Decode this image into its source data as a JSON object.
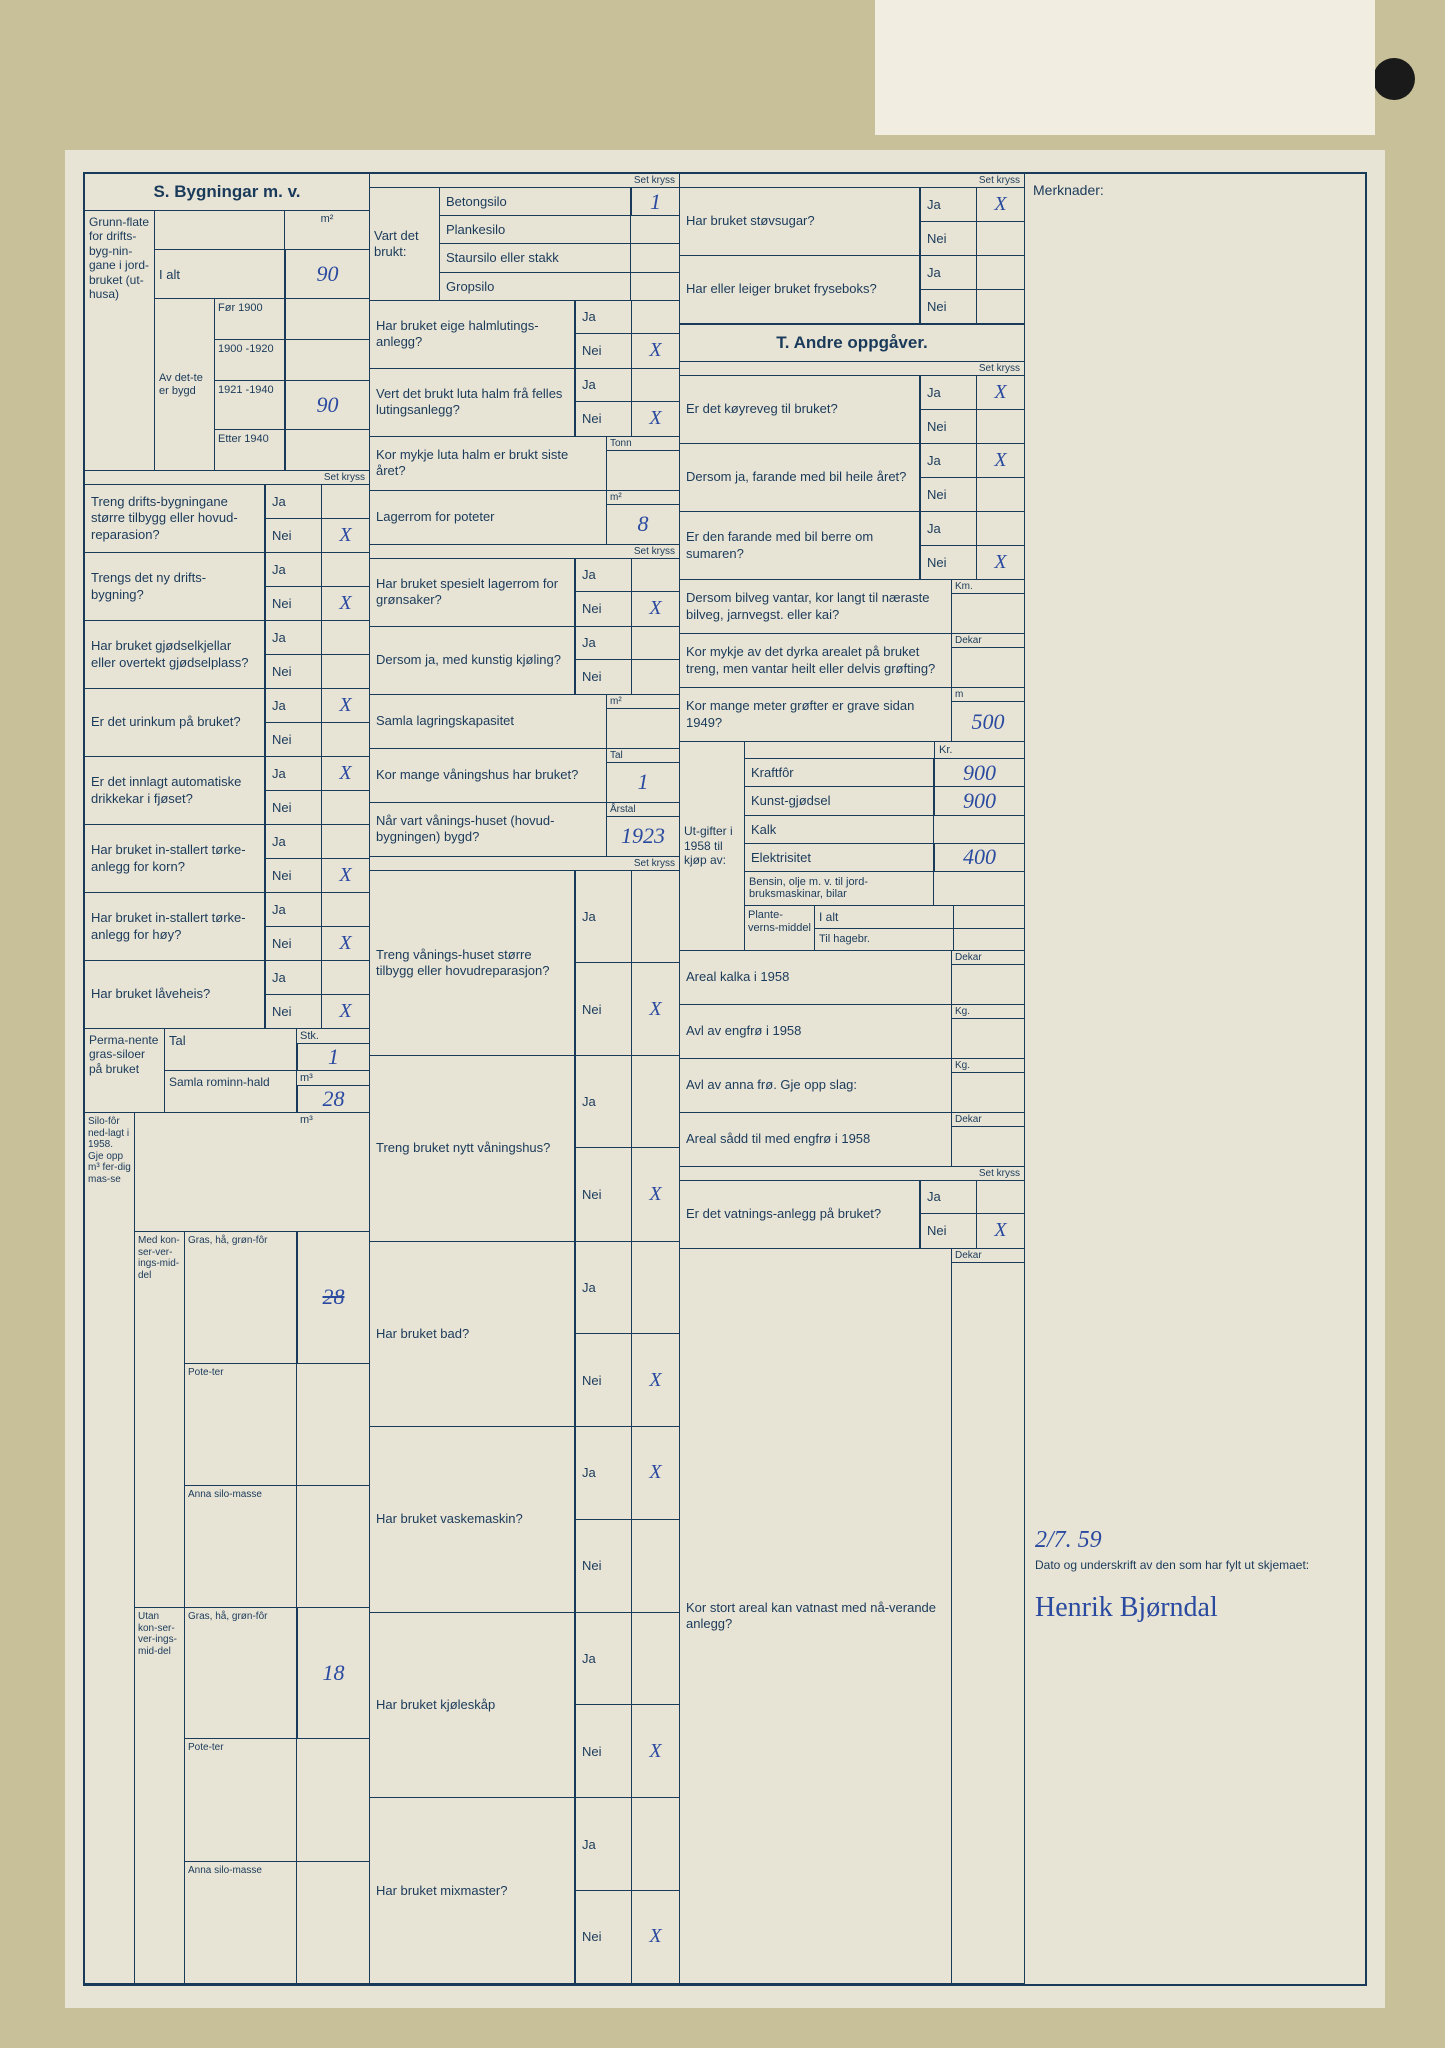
{
  "torn_paper": {
    "hole_count": 6
  },
  "section_s_title": "S. Bygningar m. v.",
  "section_t_title": "T. Andre oppgåver.",
  "merknader_label": "Merknader:",
  "set_kryss_label": "Set kryss",
  "ja": "Ja",
  "nei": "Nei",
  "col1": {
    "grunnflate": {
      "label": "Grunn-flate for drifts-byg-nin-gane i jord-bruket (ut-husa)",
      "unit": "m²",
      "i_alt_label": "I alt",
      "i_alt_val": "90",
      "av_dette_bygd": "Av det-te er bygd",
      "periods": [
        {
          "label": "Før 1900",
          "val": ""
        },
        {
          "label": "1900 -1920",
          "val": ""
        },
        {
          "label": "1921 -1940",
          "val": "90"
        },
        {
          "label": "Etter 1940",
          "val": ""
        }
      ]
    },
    "questions": [
      {
        "q": "Treng drifts-bygningane større tilbygg eller hovud-reparasion?",
        "ja": "",
        "nei": "X"
      },
      {
        "q": "Trengs det ny drifts-bygning?",
        "ja": "",
        "nei": "X"
      },
      {
        "q": "Har bruket gjødselkjellar eller overtekt gjødselplass?",
        "ja": "",
        "nei": ""
      },
      {
        "q": "Er det urinkum på bruket?",
        "ja": "X",
        "nei": ""
      },
      {
        "q": "Er det innlagt automatiske drikkekar i fjøset?",
        "ja": "X",
        "nei": ""
      },
      {
        "q": "Har bruket in-stallert tørke-anlegg for korn?",
        "ja": "",
        "nei": "X"
      },
      {
        "q": "Har bruket in-stallert tørke-anlegg for høy?",
        "ja": "",
        "nei": "X"
      },
      {
        "q": "Har bruket låveheis?",
        "ja": "",
        "nei": "X"
      }
    ],
    "siloer": {
      "label": "Perma-nente gras-siloer på bruket",
      "tal_label": "Tal",
      "tal_unit": "Stk.",
      "tal_val": "1",
      "rom_label": "Samla rominn-hald",
      "rom_unit": "m³",
      "rom_val": "28"
    },
    "silofor": {
      "label": "Silo-fôr ned-lagt i 1958. Gje opp m³ fer-dig mas-se",
      "med_label": "Med kon-ser-ver-ings-mid-del",
      "utan_label": "Utan kon-ser-ver-ings-mid-del",
      "unit": "m³",
      "items": [
        "Gras, hå, grøn-fôr",
        "Pote-ter",
        "Anna silo-masse"
      ],
      "med_vals": [
        "28",
        "",
        ""
      ],
      "med_strike": "28",
      "utan_vals": [
        "18",
        "",
        ""
      ]
    }
  },
  "col2": {
    "vart_brukt": {
      "label": "Vart det brukt:",
      "items": [
        {
          "label": "Betongsilo",
          "val": "1"
        },
        {
          "label": "Plankesilo",
          "val": ""
        },
        {
          "label": "Staursilo eller stakk",
          "val": ""
        },
        {
          "label": "Gropsilo",
          "val": ""
        }
      ]
    },
    "questions": [
      {
        "q": "Har bruket eige halmlutings-anlegg?",
        "ja": "",
        "nei": "X"
      },
      {
        "q": "Vert det brukt luta halm frå felles lutingsanlegg?",
        "ja": "",
        "nei": "X"
      }
    ],
    "luta_halm": {
      "q": "Kor mykje luta halm er brukt siste året?",
      "unit": "Tonn",
      "val": ""
    },
    "lagerrom": {
      "q": "Lagerrom for poteter",
      "unit": "m²",
      "val": "8"
    },
    "questions2": [
      {
        "q": "Har bruket spesielt lagerrom for grønsaker?",
        "ja": "",
        "nei": "X"
      },
      {
        "q": "Dersom ja, med kunstig kjøling?",
        "ja": "",
        "nei": ""
      }
    ],
    "lagring": {
      "q": "Samla lagringskapasitet",
      "unit": "m²",
      "val": ""
    },
    "vaningshus": {
      "q": "Kor mange våningshus har bruket?",
      "unit": "Tal",
      "val": "1"
    },
    "bygd_ar": {
      "q": "Når vart vånings-huset (hovud-bygningen) bygd?",
      "unit": "Årstal",
      "val": "1923"
    },
    "questions3": [
      {
        "q": "Treng vånings-huset større tilbygg eller hovudreparasjon?",
        "ja": "",
        "nei": "X"
      },
      {
        "q": "Treng bruket nytt våningshus?",
        "ja": "",
        "nei": "X"
      },
      {
        "q": "Har bruket bad?",
        "ja": "",
        "nei": "X"
      },
      {
        "q": "Har bruket vaskemaskin?",
        "ja": "X",
        "nei": ""
      },
      {
        "q": "Har bruket kjøleskåp",
        "ja": "",
        "nei": "X"
      },
      {
        "q": "Har bruket mixmaster?",
        "ja": "",
        "nei": "X"
      }
    ]
  },
  "col3": {
    "questions_top": [
      {
        "q": "Har bruket støvsugar?",
        "ja": "X",
        "nei": ""
      },
      {
        "q": "Har eller leiger bruket fryseboks?",
        "ja": "",
        "nei": ""
      }
    ],
    "questions1": [
      {
        "q": "Er det køyreveg til bruket?",
        "ja": "X",
        "nei": ""
      },
      {
        "q": "Dersom ja, farande med bil heile året?",
        "ja": "X",
        "nei": ""
      },
      {
        "q": "Er den farande med bil berre om sumaren?",
        "ja": "",
        "nei": "X"
      }
    ],
    "bilveg_km": {
      "q": "Dersom bilveg vantar, kor langt til næraste bilveg, jarnvegst. eller kai?",
      "unit": "Km.",
      "val": ""
    },
    "grofting": {
      "q": "Kor mykje av det dyrka arealet på bruket treng, men vantar heilt eller delvis grøfting?",
      "unit": "Dekar",
      "val": ""
    },
    "grofter_m": {
      "q": "Kor mange meter grøfter er grave sidan 1949?",
      "unit": "m",
      "val": "500"
    },
    "utgifter": {
      "label": "Ut-gifter i 1958 til kjøp av:",
      "unit": "Kr.",
      "items": [
        {
          "label": "Kraftfôr",
          "val": "900"
        },
        {
          "label": "Kunst-gjødsel",
          "val": "900"
        },
        {
          "label": "Kalk",
          "val": ""
        },
        {
          "label": "Elektrisitet",
          "val": "400"
        },
        {
          "label": "Bensin, olje m. v. til jord-bruksmaskinar, bilar",
          "val": ""
        }
      ],
      "plante": {
        "label": "Plante-verns-middel",
        "i_alt": "I alt",
        "til_hage": "Til hagebr.",
        "val1": "",
        "val2": ""
      }
    },
    "areal_kalka": {
      "q": "Areal kalka i 1958",
      "unit": "Dekar",
      "val": ""
    },
    "avl_engfro": {
      "q": "Avl av engfrø i 1958",
      "unit": "Kg.",
      "val": ""
    },
    "avl_anna": {
      "q": "Avl av anna frø. Gje opp slag:",
      "unit": "Kg.",
      "val": ""
    },
    "areal_sadd": {
      "q": "Areal sådd til med engfrø i 1958",
      "unit": "Dekar",
      "val": ""
    },
    "vatning": {
      "q": "Er det vatnings-anlegg på bruket?",
      "ja": "",
      "nei": "X"
    },
    "vatnast": {
      "q": "Kor stort areal kan vatnast med nå-verande anlegg?",
      "unit": "Dekar",
      "val": ""
    }
  },
  "col4": {
    "date": "2/7. 59",
    "sig_label": "Dato og underskrift av den som har fylt ut skjemaet:",
    "signature": "Henrik Bjørndal"
  }
}
